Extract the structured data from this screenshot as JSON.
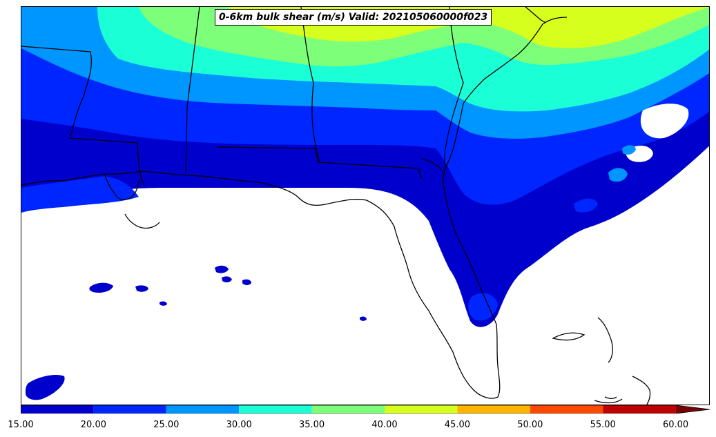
{
  "title": "0-6km bulk shear (m/s) Valid: 202105060000f023",
  "colors": {
    "c15": "#0000cd",
    "c20": "#0026ff",
    "c25": "#0096ff",
    "c30": "#1affd6",
    "c35": "#7dff7a",
    "c40": "#d7ff1e",
    "c45": "#ffb400",
    "c50": "#ff4800",
    "c55": "#c00000",
    "c60": "#7a0000",
    "land_line": "#000000"
  },
  "colorbar": {
    "ticks": [
      "15.00",
      "20.00",
      "25.00",
      "30.00",
      "35.00",
      "40.00",
      "45.00",
      "50.00",
      "55.00",
      "60.00"
    ],
    "levels": [
      15,
      20,
      25,
      30,
      35,
      40,
      45,
      50,
      55,
      60
    ],
    "extend": "max"
  }
}
